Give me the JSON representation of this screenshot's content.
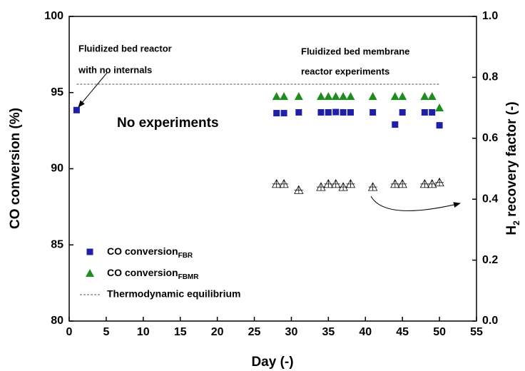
{
  "chart_data": {
    "type": "scatter",
    "x_label": "Day (-)",
    "y_label": "CO conversion (%)",
    "y2_label": {
      "text": "H",
      "sub": "2",
      "rest": " recovery factor (-)"
    },
    "xlim": [
      0,
      55
    ],
    "xticks": [
      0,
      5,
      10,
      15,
      20,
      25,
      30,
      35,
      40,
      45,
      50,
      55
    ],
    "ylim": [
      80,
      100
    ],
    "yticks": [
      80,
      85,
      90,
      95,
      100
    ],
    "y2lim": [
      0,
      1
    ],
    "y2ticks": [
      {
        "value": 0,
        "label": "0.0"
      },
      0.2,
      0.4,
      0.6,
      0.8,
      {
        "value": 1,
        "label": "1.0"
      }
    ],
    "series": [
      {
        "name": "CO conversion",
        "sub": "FBR",
        "marker": "square",
        "color": "#1f1fa8",
        "x": [
          1,
          28,
          29,
          31,
          34,
          35,
          36,
          37,
          38,
          41,
          44,
          45,
          48,
          49,
          50
        ],
        "values": [
          93.85,
          93.65,
          93.65,
          93.7,
          93.7,
          93.7,
          93.72,
          93.7,
          93.7,
          93.7,
          92.9,
          93.7,
          93.7,
          93.7,
          92.85
        ]
      },
      {
        "name": "CO conversion",
        "sub": "FBMR",
        "marker": "triangle",
        "color": "#1f8c1f",
        "x": [
          28,
          29,
          31,
          34,
          35,
          36,
          37,
          38,
          41,
          44,
          45,
          48,
          49,
          50
        ],
        "values": [
          94.75,
          94.75,
          94.75,
          94.75,
          94.75,
          94.75,
          94.75,
          94.75,
          94.75,
          94.75,
          94.75,
          94.75,
          94.75,
          94.0
        ]
      },
      {
        "marker": "open-triangle",
        "color": "#000000",
        "axis": "y2",
        "x": [
          28,
          29,
          31,
          34,
          35,
          36,
          37,
          38,
          41,
          44,
          45,
          48,
          49,
          50
        ],
        "values": [
          0.45,
          0.45,
          0.43,
          0.44,
          0.45,
          0.45,
          0.44,
          0.45,
          0.44,
          0.45,
          0.45,
          0.45,
          0.45,
          0.455
        ]
      }
    ],
    "equilibrium": {
      "name": "Thermodynamic equilibrium",
      "value": 95.55,
      "x": [
        1,
        50
      ]
    },
    "annotations": [
      "Fluidized bed reactor",
      "with no internals",
      "Fluidized bed membrane",
      "reactor experiments",
      "No experiments"
    ]
  }
}
